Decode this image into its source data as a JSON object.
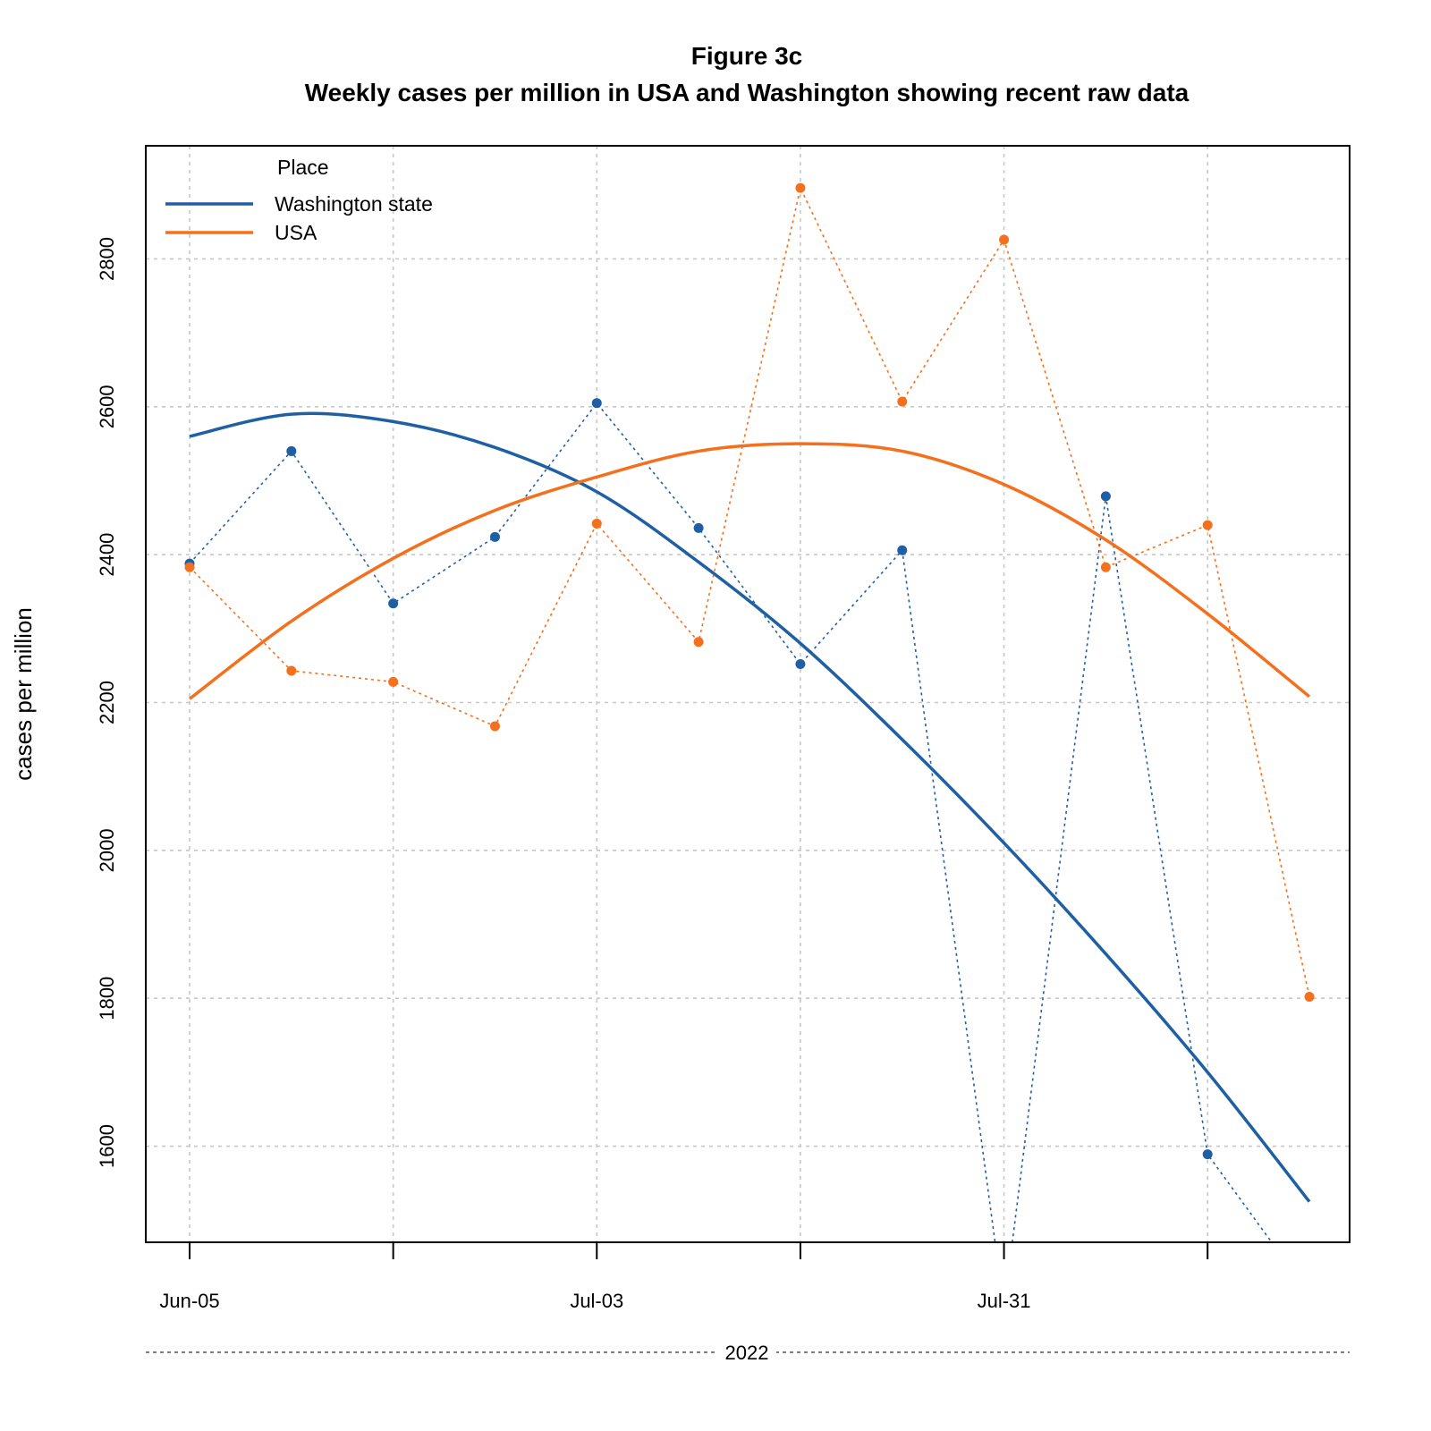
{
  "chart_data": {
    "type": "line",
    "title": "Figure 3c",
    "subtitle": "Weekly cases per million in USA and Washington showing recent raw data",
    "ylabel": "cases per million",
    "xlabel": "2022",
    "x": [
      "2022-06-05",
      "2022-06-12",
      "2022-06-19",
      "2022-06-26",
      "2022-07-03",
      "2022-07-10",
      "2022-07-17",
      "2022-07-24",
      "2022-07-31",
      "2022-08-07",
      "2022-08-14",
      "2022-08-21"
    ],
    "x_ticks": [
      "2022-06-05",
      "2022-06-19",
      "2022-07-03",
      "2022-07-17",
      "2022-07-31",
      "2022-08-14"
    ],
    "x_tick_labels": [
      "Jun-05",
      "",
      "Jul-03",
      "",
      "Jul-31",
      ""
    ],
    "ylim": [
      1470,
      2953
    ],
    "y_ticks": [
      1600,
      1800,
      2000,
      2200,
      2400,
      2600,
      2800
    ],
    "grid": true,
    "legend_title": "Place",
    "legend_position": "top-left",
    "series": [
      {
        "name": "Washington state",
        "color": "#1f5fa3",
        "raw": [
          2388,
          2540,
          2334,
          2424,
          2605,
          2436,
          2252,
          2406,
          1380,
          2479,
          1589,
          1400
        ],
        "trend": [
          2560,
          2590,
          2580,
          2545,
          2485,
          2390,
          2280,
          2150,
          2010,
          1860,
          1700,
          1525
        ]
      },
      {
        "name": "USA",
        "color": "#f4701c",
        "raw": [
          2383,
          2243,
          2228,
          2168,
          2442,
          2282,
          2896,
          2607,
          2826,
          2383,
          2440,
          1802
        ],
        "trend": [
          2205,
          2310,
          2395,
          2460,
          2505,
          2540,
          2550,
          2540,
          2495,
          2420,
          2320,
          2208
        ]
      }
    ]
  }
}
